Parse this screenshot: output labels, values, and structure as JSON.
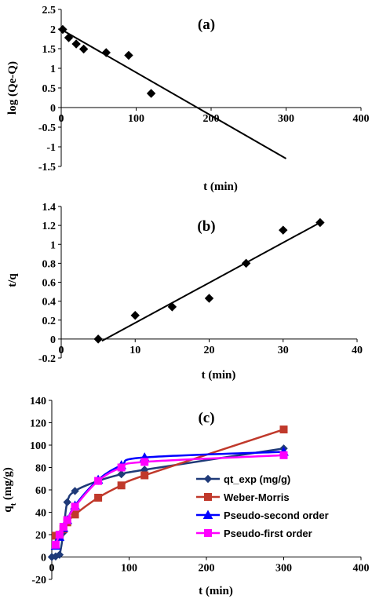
{
  "colors": {
    "axis": "#000000",
    "fit_line": "#000000",
    "qt_exp": "#1f3a78",
    "weber_morris": "#c0392b",
    "pseudo_second": "#0000ff",
    "pseudo_first": "#ff00ff"
  },
  "icons": {
    "qt_exp": "diamond-marker",
    "weber_morris": "square-marker",
    "pseudo_second": "triangle-marker",
    "pseudo_first": "square-marker"
  },
  "chart_data": [
    {
      "type": "scatter",
      "panel_label": "(a)",
      "xlabel": "t (min)",
      "ylabel": "log (Qe-Q)",
      "xlim": [
        0,
        400
      ],
      "ylim": [
        -1.5,
        2.5
      ],
      "xticks": [
        "0",
        "100",
        "200",
        "300",
        "400"
      ],
      "yticks": [
        "2.5",
        "2",
        "1.5",
        "1",
        "0.5",
        "0",
        "-0.5",
        "-1",
        "-1.5"
      ],
      "points": [
        [
          2,
          1.99
        ],
        [
          10,
          1.78
        ],
        [
          20,
          1.62
        ],
        [
          30,
          1.49
        ],
        [
          60,
          1.4
        ],
        [
          90,
          1.33
        ],
        [
          120,
          0.36
        ]
      ],
      "fit_line": [
        [
          0,
          1.99
        ],
        [
          300,
          -1.3
        ]
      ],
      "legend": "none",
      "grid": false
    },
    {
      "type": "scatter",
      "panel_label": "(b)",
      "xlabel": "t (min)",
      "ylabel": "t/q",
      "xlim": [
        0,
        40
      ],
      "ylim": [
        -0.2,
        1.4
      ],
      "xticks": [
        "0",
        "10",
        "20",
        "30",
        "40"
      ],
      "yticks": [
        "1.4",
        "1.2",
        "1",
        "0.8",
        "0.6",
        "0.4",
        "0.2",
        "0",
        "-0.2"
      ],
      "points": [
        [
          5,
          0.0
        ],
        [
          10,
          0.25
        ],
        [
          15,
          0.34
        ],
        [
          20,
          0.43
        ],
        [
          25,
          0.8
        ],
        [
          30,
          1.15
        ],
        [
          35,
          1.23
        ]
      ],
      "fit_line": [
        [
          5.5,
          -0.02
        ],
        [
          35,
          1.23
        ]
      ],
      "legend": "none",
      "grid": false
    },
    {
      "type": "line",
      "panel_label": "(c)",
      "xlabel": "t (min)",
      "ylabel": "q",
      "ylabel_sub": "t",
      "ylabel_suffix": " (mg/g)",
      "xlim": [
        0,
        400
      ],
      "ylim": [
        -20,
        140
      ],
      "xticks": [
        "0",
        "100",
        "200",
        "300",
        "400"
      ],
      "yticks": [
        "140",
        "120",
        "100",
        "80",
        "60",
        "40",
        "20",
        "0",
        "-20"
      ],
      "legend": "center-right",
      "grid": false,
      "series": [
        {
          "name": "qt_exp (mg/g)",
          "marker": "diamond",
          "x": [
            0,
            5,
            10,
            15,
            20,
            30,
            60,
            90,
            120,
            300
          ],
          "y": [
            0,
            0.5,
            2,
            22,
            49,
            59,
            68,
            74,
            78,
            97
          ]
        },
        {
          "name": "Weber-Morris",
          "marker": "square",
          "x": [
            5,
            10,
            15,
            20,
            30,
            60,
            90,
            120,
            300
          ],
          "y": [
            19,
            20,
            25,
            31,
            38,
            53,
            64,
            73,
            114
          ]
        },
        {
          "name": "Pseudo-second order",
          "marker": "triangle",
          "x": [
            5,
            10,
            15,
            20,
            30,
            60,
            90,
            120,
            300
          ],
          "y": [
            10,
            18,
            26,
            33,
            46,
            69,
            82,
            89,
            94
          ]
        },
        {
          "name": "Pseudo-first order",
          "marker": "square",
          "x": [
            5,
            10,
            15,
            20,
            30,
            60,
            90,
            120,
            300
          ],
          "y": [
            11,
            20,
            27,
            33,
            45,
            68,
            80,
            85,
            91
          ]
        }
      ]
    }
  ]
}
